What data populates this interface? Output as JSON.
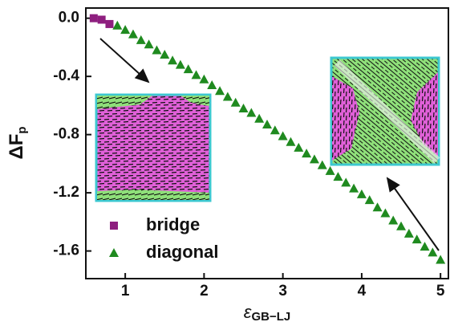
{
  "chart_data": {
    "type": "scatter",
    "xlabel": "ε",
    "xlabel_sub": "GB−LJ",
    "ylabel": "ΔF",
    "ylabel_sub": "p",
    "xlim": [
      0.5,
      5.1
    ],
    "xticks": [
      1,
      2,
      3,
      4,
      5
    ],
    "ylim": [
      -1.79,
      0.07
    ],
    "yticks": [
      {
        "value": 0,
        "label": "0.0"
      },
      -0.4,
      -0.8,
      -1.2,
      -1.6
    ],
    "series": [
      {
        "name": "bridge",
        "color": "#8e1f7f",
        "marker": "square",
        "x": [
          0.6,
          0.7,
          0.8
        ],
        "values": [
          0,
          -0.01,
          -0.04
        ]
      },
      {
        "name": "diagonal",
        "color": "#1f8a1f",
        "marker": "triangle",
        "x": [
          0.9,
          1.0,
          1.1,
          1.2,
          1.3,
          1.4,
          1.5,
          1.6,
          1.7,
          1.8,
          1.9,
          2.0,
          2.1,
          2.2,
          2.3,
          2.4,
          2.5,
          2.6,
          2.7,
          2.8,
          2.9,
          3.0,
          3.1,
          3.2,
          3.3,
          3.4,
          3.5,
          3.6,
          3.7,
          3.8,
          3.9,
          4.0,
          4.1,
          4.2,
          4.3,
          4.4,
          4.5,
          4.6,
          4.7,
          4.8,
          4.9,
          5.0
        ],
        "values": [
          -0.05,
          -0.08,
          -0.11,
          -0.15,
          -0.18,
          -0.22,
          -0.25,
          -0.29,
          -0.32,
          -0.35,
          -0.39,
          -0.42,
          -0.46,
          -0.5,
          -0.54,
          -0.58,
          -0.62,
          -0.65,
          -0.69,
          -0.73,
          -0.77,
          -0.81,
          -0.85,
          -0.89,
          -0.93,
          -0.97,
          -1.01,
          -1.05,
          -1.09,
          -1.13,
          -1.17,
          -1.21,
          -1.25,
          -1.3,
          -1.34,
          -1.39,
          -1.43,
          -1.48,
          -1.52,
          -1.57,
          -1.61,
          -1.66
        ]
      }
    ],
    "legend": "lower left"
  }
}
